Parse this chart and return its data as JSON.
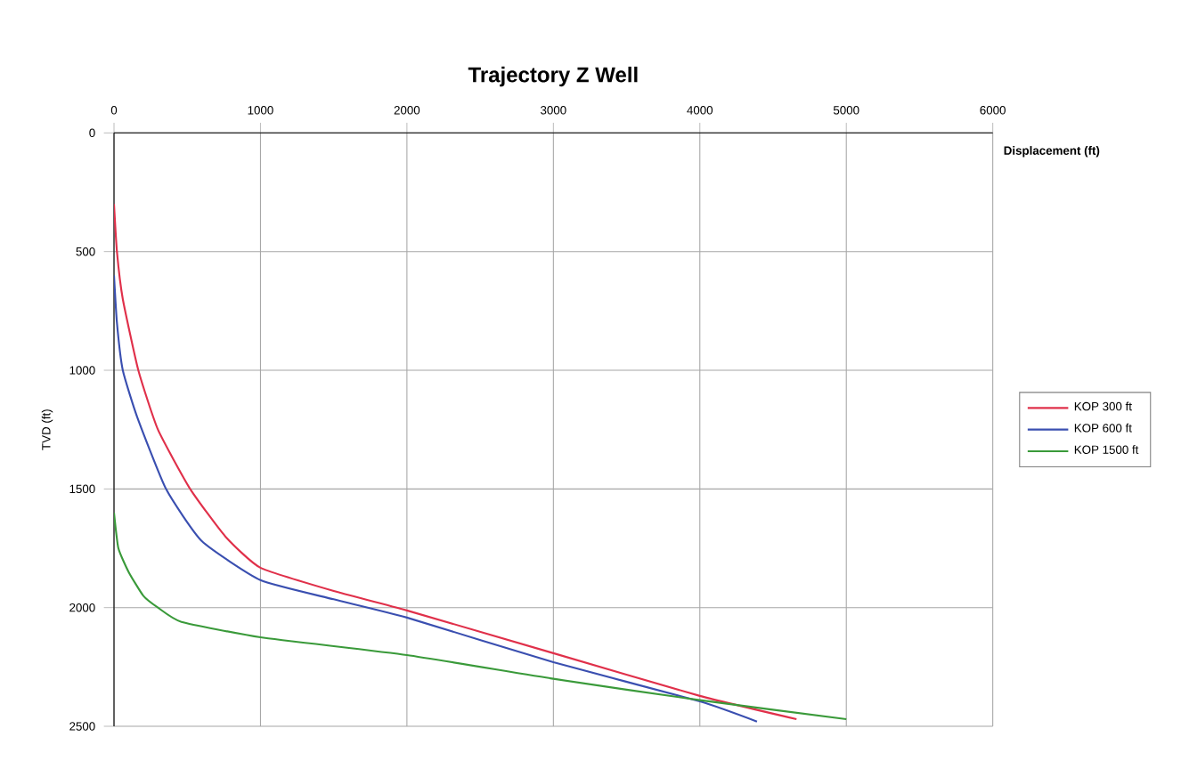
{
  "chart_data": {
    "type": "line",
    "title": "Trajectory Z Well",
    "xlabel": "Displacement (ft)",
    "ylabel": "TVD (ft)",
    "xlim": [
      0,
      6000
    ],
    "xticks": [
      0,
      1000,
      2000,
      3000,
      4000,
      5000,
      6000
    ],
    "ylim": [
      2500,
      0
    ],
    "yticks": [
      0,
      500,
      1000,
      1500,
      2000,
      2500
    ],
    "grid": true,
    "legend": "right",
    "marker": "none",
    "line_style": "solid",
    "series": [
      {
        "name": "KOP 300 ft",
        "color": "#e0304a",
        "x": [
          0,
          20,
          60,
          166,
          300,
          520,
          760,
          1000,
          1500,
          2000,
          3000,
          4000,
          4660
        ],
        "values": [
          300,
          500,
          700,
          1000,
          1250,
          1500,
          1700,
          1832,
          1930,
          2012,
          2192,
          2372,
          2470
        ]
      },
      {
        "name": "KOP 600 ft",
        "color": "#3a4fb0",
        "x": [
          0,
          20,
          60,
          160,
          355,
          600,
          1000,
          1500,
          2000,
          3000,
          4000,
          4390
        ],
        "values": [
          600,
          800,
          1000,
          1200,
          1500,
          1720,
          1884,
          1965,
          2042,
          2230,
          2395,
          2480
        ]
      },
      {
        "name": "KOP 1500 ft",
        "color": "#3a9a3a",
        "x": [
          0,
          30,
          100,
          200,
          300,
          460,
          1000,
          2000,
          3000,
          4000,
          5000
        ],
        "values": [
          1600,
          1750,
          1850,
          1950,
          2000,
          2060,
          2125,
          2200,
          2300,
          2390,
          2470
        ]
      }
    ]
  }
}
